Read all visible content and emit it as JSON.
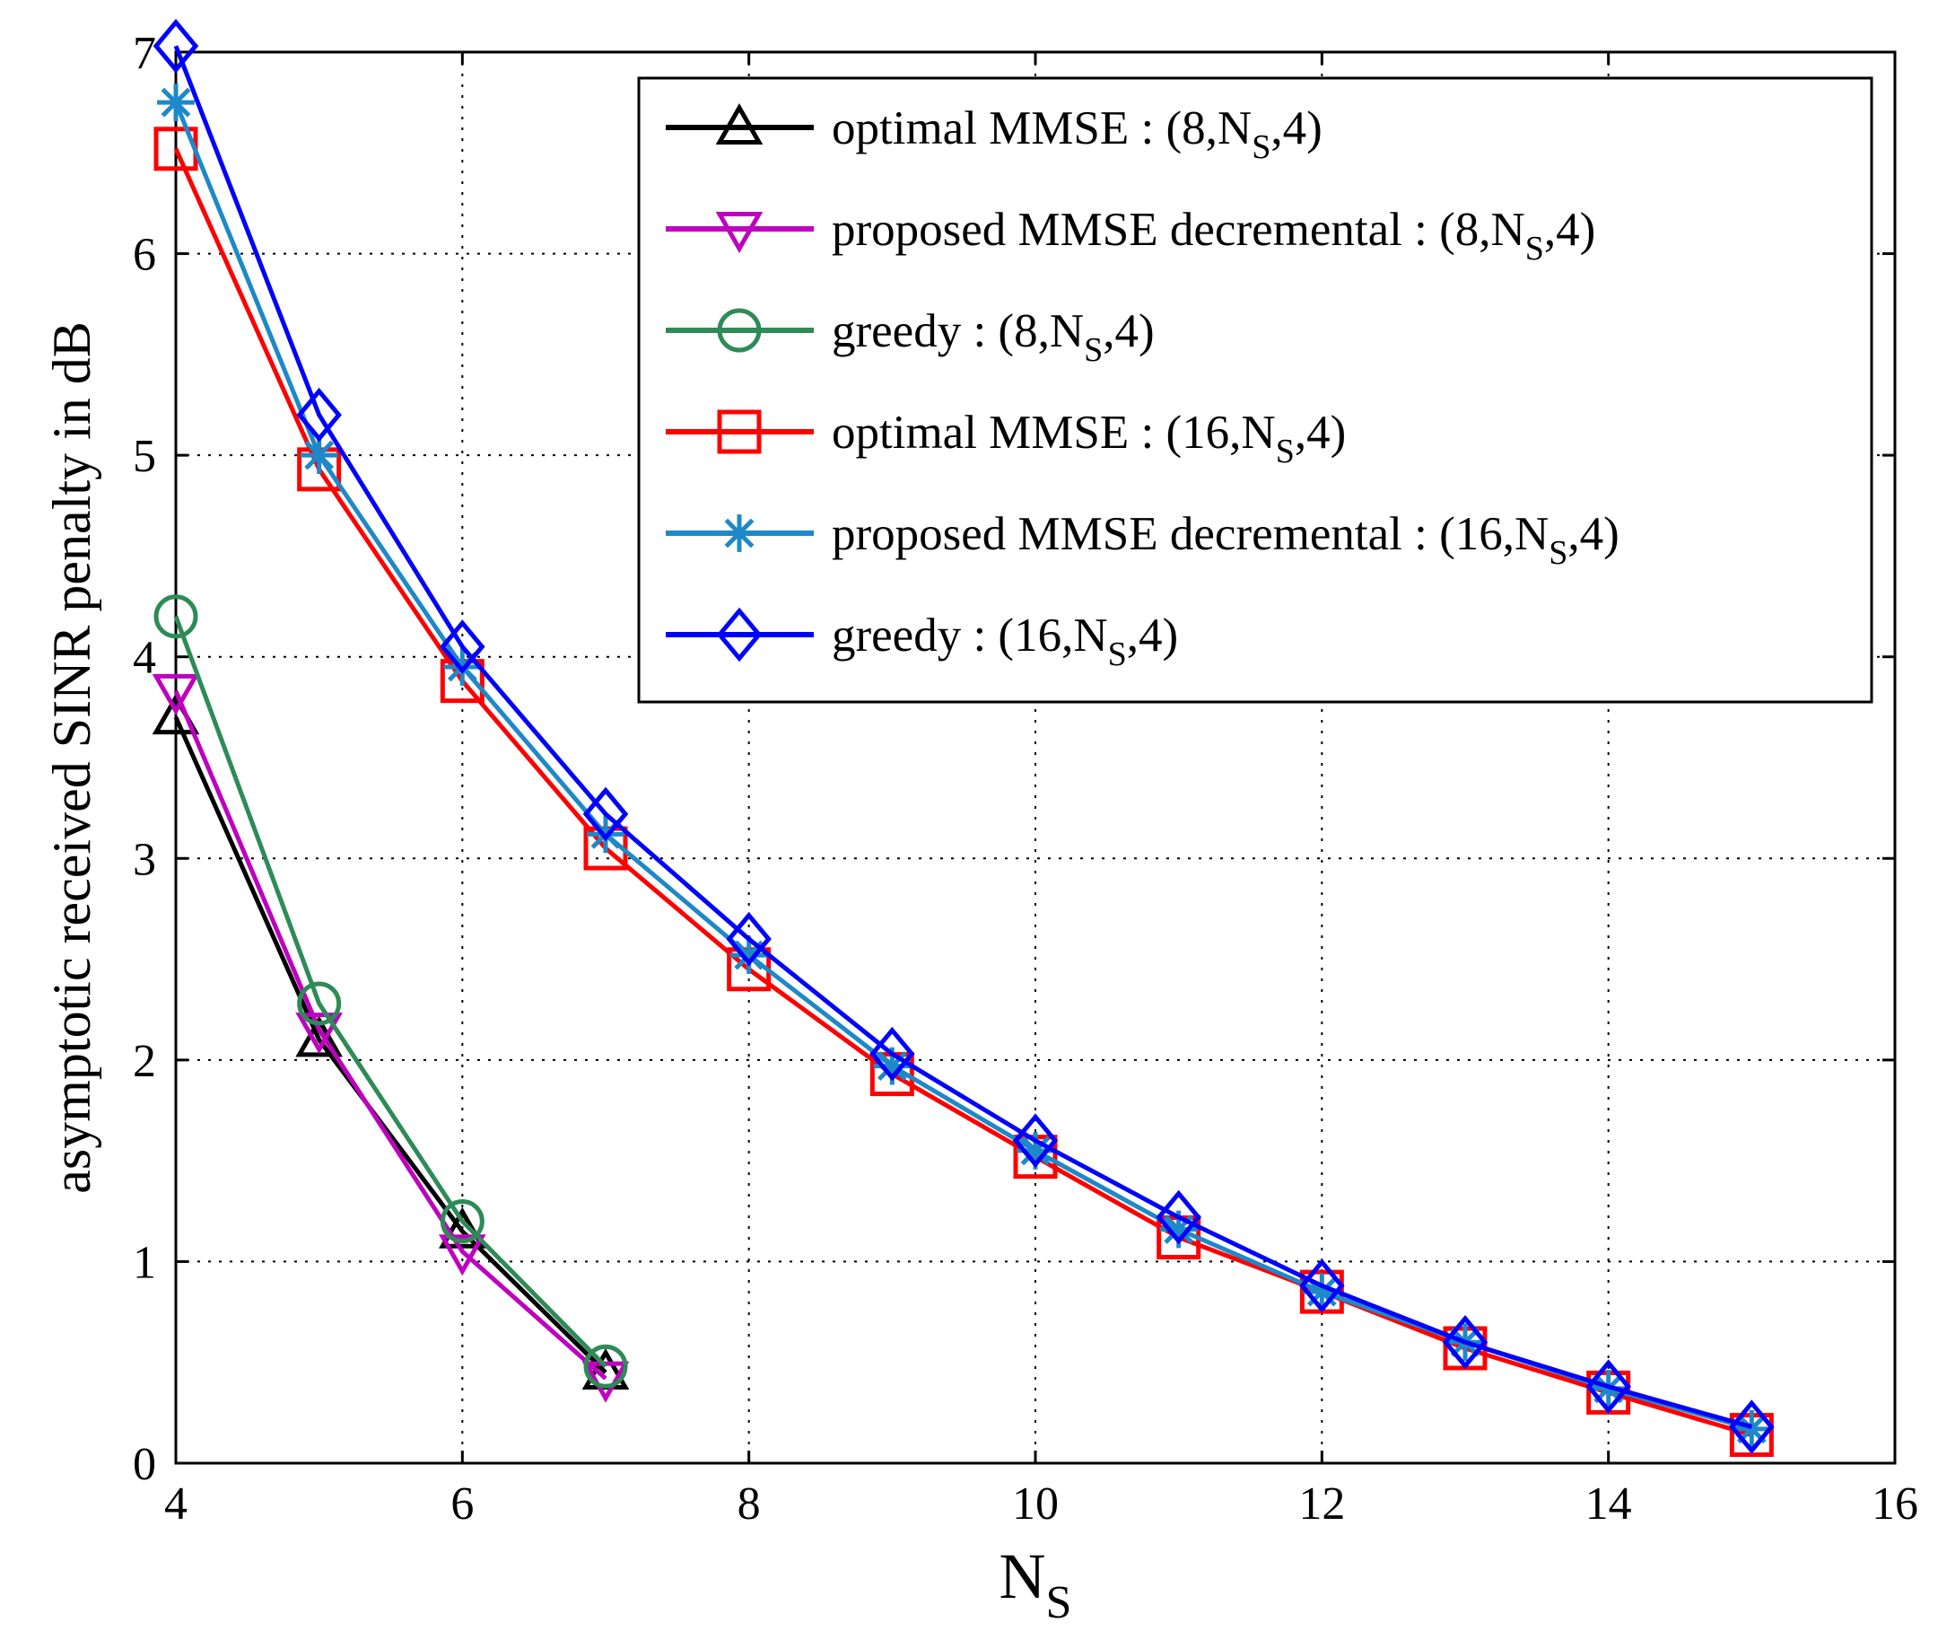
{
  "chart_data": {
    "type": "line",
    "title": "",
    "xlabel": "N",
    "xlabel_sub": "S",
    "ylabel": "asymptotic received SINR penalty in dB",
    "xlim": [
      4,
      16
    ],
    "ylim": [
      0,
      7
    ],
    "xticks": [
      4,
      6,
      8,
      10,
      12,
      14,
      16
    ],
    "yticks": [
      0,
      1,
      2,
      3,
      4,
      5,
      6,
      7
    ],
    "grid": true,
    "legend_position": "top-right",
    "series": [
      {
        "name": "optimal MMSE : (8,N",
        "sub": "S",
        "suffix": ",4)",
        "color": "#000000",
        "marker": "triangle-up",
        "x": [
          4,
          5,
          6,
          7
        ],
        "values": [
          3.7,
          2.1,
          1.15,
          0.45
        ]
      },
      {
        "name": "proposed MMSE decremental : (8,N",
        "sub": "S",
        "suffix": ",4)",
        "color": "#bf00bf",
        "marker": "triangle-down",
        "x": [
          4,
          5,
          6,
          7
        ],
        "values": [
          3.83,
          2.15,
          1.05,
          0.42
        ]
      },
      {
        "name": "greedy : (8,N",
        "sub": "S",
        "suffix": ",4)",
        "color": "#2e8b57",
        "marker": "circle",
        "x": [
          4,
          5,
          6,
          7
        ],
        "values": [
          4.2,
          2.28,
          1.2,
          0.48
        ]
      },
      {
        "name": "optimal MMSE : (16,N",
        "sub": "S",
        "suffix": ",4)",
        "color": "#ff0000",
        "marker": "square",
        "x": [
          4,
          5,
          6,
          7,
          8,
          9,
          10,
          11,
          12,
          13,
          14,
          15
        ],
        "values": [
          6.52,
          4.93,
          3.88,
          3.05,
          2.45,
          1.93,
          1.52,
          1.12,
          0.85,
          0.57,
          0.35,
          0.14
        ]
      },
      {
        "name": "proposed MMSE decremental : (16,N",
        "sub": "S",
        "suffix": ",4)",
        "color": "#1e88c8",
        "marker": "asterisk",
        "x": [
          4,
          5,
          6,
          7,
          8,
          9,
          10,
          11,
          12,
          13,
          14,
          15
        ],
        "values": [
          6.75,
          5.0,
          3.95,
          3.12,
          2.52,
          1.97,
          1.55,
          1.16,
          0.85,
          0.6,
          0.37,
          0.17
        ]
      },
      {
        "name": "greedy : (16,N",
        "sub": "S",
        "suffix": ",4)",
        "color": "#0000ff",
        "marker": "diamond",
        "x": [
          4,
          5,
          6,
          7,
          8,
          9,
          10,
          11,
          12,
          13,
          14,
          15
        ],
        "values": [
          7.03,
          5.2,
          4.05,
          3.22,
          2.6,
          2.03,
          1.6,
          1.22,
          0.88,
          0.6,
          0.38,
          0.18
        ]
      }
    ]
  }
}
